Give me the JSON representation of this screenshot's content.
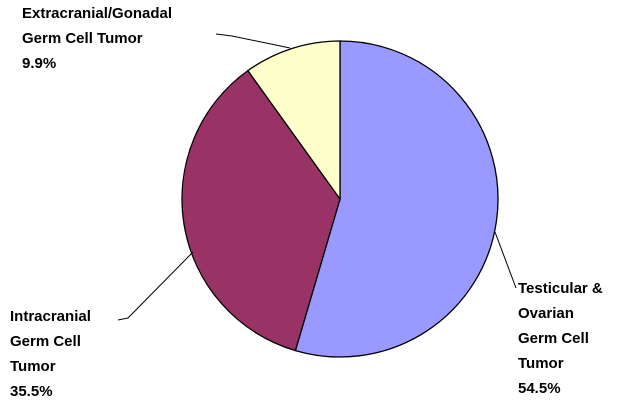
{
  "chart_data": {
    "type": "pie",
    "categories": [
      "Testicular & Ovarian Germ Cell Tumor",
      "Intracranial Germ Cell Tumor",
      "Extracranial/Gonadal Germ Cell Tumor"
    ],
    "values": [
      54.5,
      35.5,
      9.9
    ],
    "value_labels": [
      "54.5%",
      "35.5%",
      "9.9%"
    ],
    "colors": [
      "#9999ff",
      "#993366",
      "#ffffcc"
    ]
  }
}
